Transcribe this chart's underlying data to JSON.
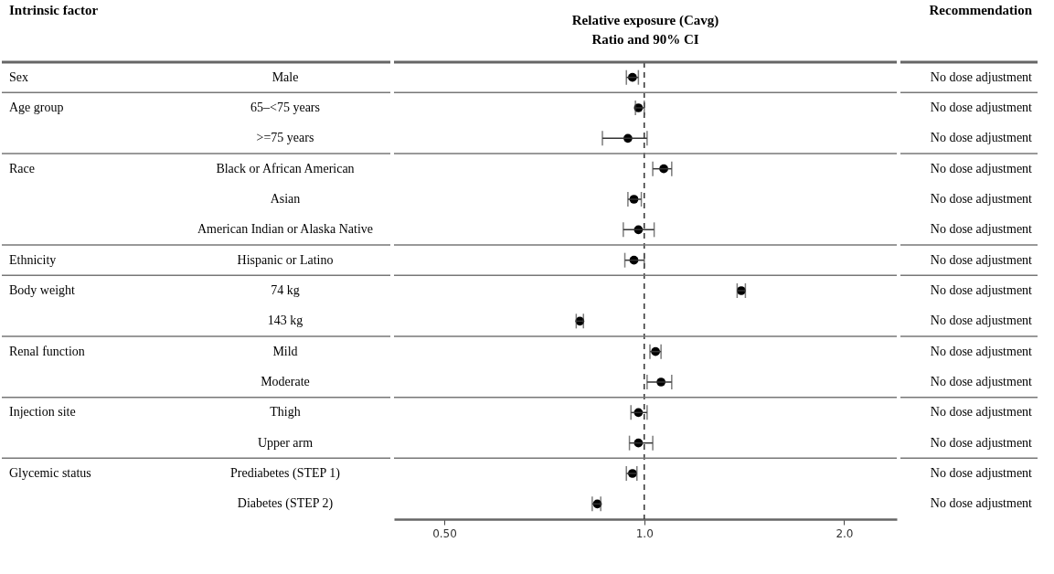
{
  "chart_data": {
    "type": "scatter",
    "orientation": "horizontal",
    "log": "x",
    "marker": "circle",
    "grid": false,
    "xlabel": "Relative exposure (Cavg)\nRatio and 90% CI",
    "annotations": [
      "Intrinsic factor",
      "Recommendation"
    ],
    "categories": [
      "Male",
      "65–<75 years",
      ">=75 years",
      "Black or African American",
      "Asian",
      "American Indian or Alaska Native",
      "Hispanic or Latino",
      "74 kg",
      "143 kg",
      "Mild",
      "Moderate",
      "Thigh",
      "Upper arm",
      "Prediabetes (STEP 1)",
      "Diabetes (STEP 2)"
    ],
    "y_categories": [
      "Sex",
      "Age group",
      null,
      "Race",
      null,
      null,
      "Ethnicity",
      "Body weight",
      null,
      "Renal function",
      null,
      "Injection site",
      null,
      "Glycemic status",
      null
    ],
    "y2_categories": [
      "No dose adjustment",
      "No dose adjustment",
      "No dose adjustment",
      "No dose adjustment",
      "No dose adjustment",
      "No dose adjustment",
      "No dose adjustment",
      "No dose adjustment",
      "No dose adjustment",
      "No dose adjustment",
      "No dose adjustment",
      "No dose adjustment",
      "No dose adjustment",
      "No dose adjustment",
      "No dose adjustment"
    ],
    "series": [
      {
        "color": "#000000",
        "values": [
          0.96,
          0.98,
          0.945,
          1.07,
          0.965,
          0.98,
          0.965,
          1.4,
          0.8,
          1.04,
          1.06,
          0.98,
          0.98,
          0.96,
          0.85
        ],
        "errors": [
          [
            0.94,
            0.98
          ],
          [
            0.97,
            1.0
          ],
          [
            0.865,
            1.01
          ],
          [
            1.03,
            1.1
          ],
          [
            0.945,
            0.99
          ],
          [
            0.93,
            1.035
          ],
          [
            0.935,
            1.0
          ],
          [
            1.38,
            1.42
          ],
          [
            0.79,
            0.81
          ],
          [
            1.02,
            1.06
          ],
          [
            1.01,
            1.1
          ],
          [
            0.955,
            1.01
          ],
          [
            0.95,
            1.03
          ],
          [
            0.94,
            0.975
          ],
          [
            0.835,
            0.86
          ]
        ]
      }
    ],
    "ref_lines": [
      {
        "axis": "x",
        "value": 1,
        "line_style": "dashed"
      }
    ],
    "xlim": [
      0.42,
      2.4
    ],
    "xticks": [
      {
        "value": 0.5,
        "label": "0.50"
      },
      {
        "value": 1,
        "label": "1.0"
      },
      {
        "value": 2,
        "label": "2.0"
      }
    ]
  }
}
